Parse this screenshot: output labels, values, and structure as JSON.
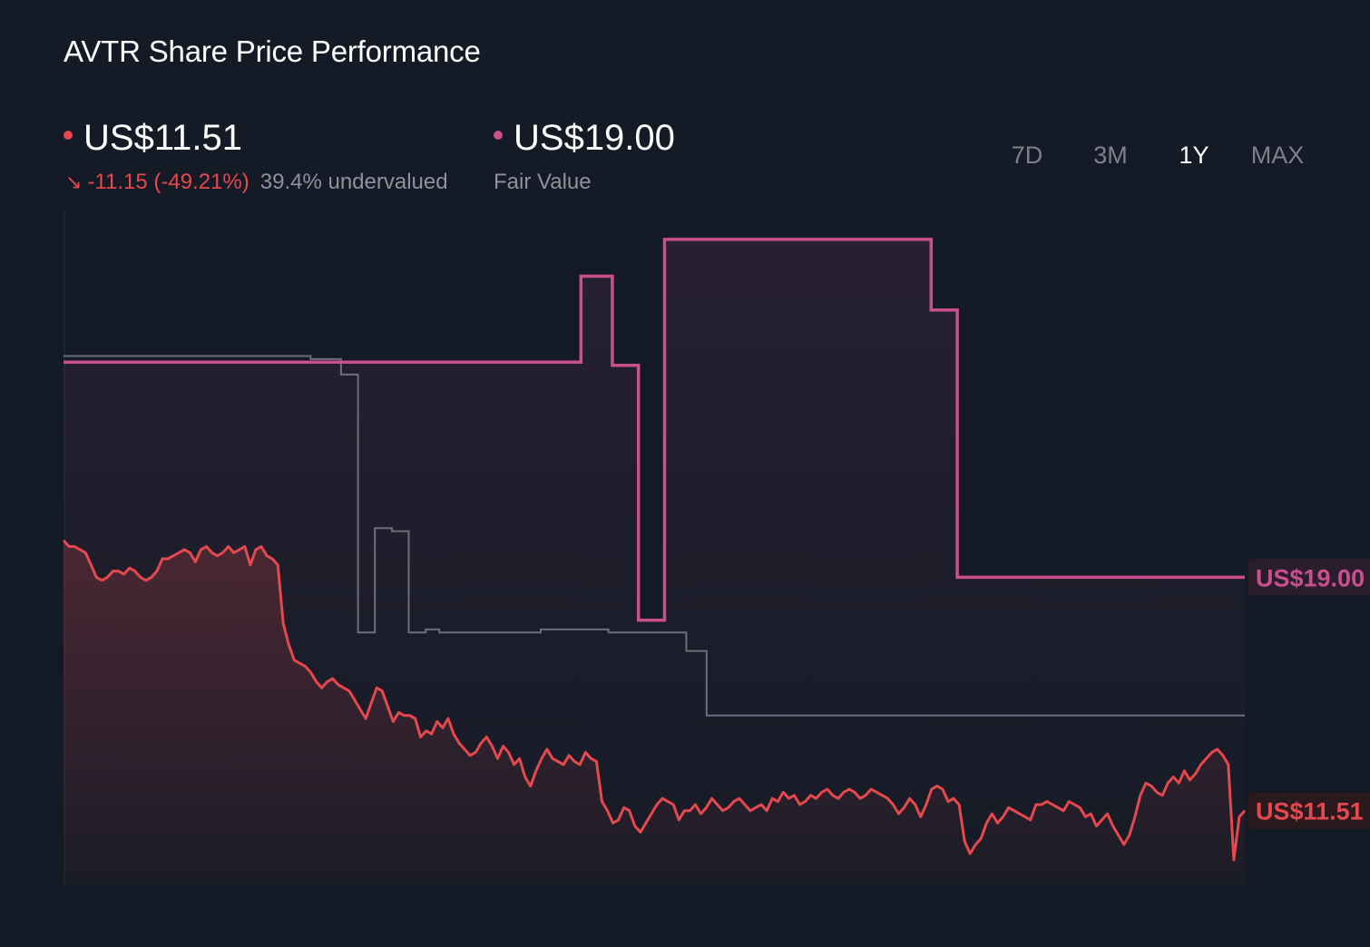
{
  "header": {
    "title": "AVTR Share Price Performance"
  },
  "price": {
    "value": "US$11.51",
    "change": "-11.15 (-49.21%)",
    "change_icon": "arrow-down-right-icon",
    "valuation": "39.4% undervalued",
    "color": "#e5484d"
  },
  "fair_value": {
    "value": "US$19.00",
    "label": "Fair Value",
    "color": "#c94f8f"
  },
  "periods": [
    {
      "label": "7D",
      "active": false
    },
    {
      "label": "3M",
      "active": false
    },
    {
      "label": "1Y",
      "active": true
    },
    {
      "label": "MAX",
      "active": false
    }
  ],
  "chart_data": {
    "type": "line",
    "title": "AVTR Share Price Performance",
    "xlabel": "",
    "ylabel": "",
    "ylim": [
      9,
      31
    ],
    "grid": false,
    "series": [
      {
        "key": "price",
        "color": "#e5484d",
        "end_label": "US$11.51",
        "values": [
          20.2,
          20.0,
          20.0,
          19.9,
          19.8,
          19.4,
          19.0,
          18.9,
          19.0,
          19.2,
          19.2,
          19.1,
          19.3,
          19.2,
          19.0,
          18.9,
          19.0,
          19.2,
          19.6,
          19.6,
          19.7,
          19.8,
          19.9,
          19.8,
          19.5,
          19.9,
          20.0,
          19.8,
          19.7,
          19.8,
          20.0,
          19.8,
          19.9,
          20.0,
          19.4,
          19.9,
          20.0,
          19.7,
          19.6,
          19.4,
          17.5,
          16.8,
          16.3,
          16.2,
          16.1,
          15.9,
          15.6,
          15.4,
          15.6,
          15.7,
          15.5,
          15.4,
          15.3,
          15.0,
          14.7,
          14.4,
          14.9,
          15.4,
          15.3,
          14.8,
          14.3,
          14.6,
          14.5,
          14.5,
          14.4,
          13.8,
          14.0,
          13.9,
          14.3,
          14.1,
          14.4,
          13.9,
          13.6,
          13.4,
          13.2,
          13.3,
          13.6,
          13.8,
          13.5,
          13.1,
          13.5,
          13.3,
          12.9,
          13.1,
          12.5,
          12.2,
          12.7,
          13.1,
          13.4,
          13.1,
          13.0,
          12.9,
          13.2,
          13.0,
          12.9,
          13.3,
          13.1,
          13.0,
          11.7,
          11.4,
          11.0,
          11.1,
          11.5,
          11.4,
          10.9,
          10.7,
          11.0,
          11.3,
          11.6,
          11.8,
          11.7,
          11.6,
          11.1,
          11.4,
          11.4,
          11.6,
          11.3,
          11.5,
          11.8,
          11.6,
          11.4,
          11.5,
          11.7,
          11.8,
          11.6,
          11.4,
          11.5,
          11.6,
          11.4,
          11.8,
          11.7,
          12.0,
          11.8,
          11.9,
          11.6,
          11.7,
          11.9,
          11.8,
          12.0,
          12.1,
          11.9,
          11.8,
          12.0,
          12.1,
          12.0,
          11.8,
          11.9,
          12.1,
          12.0,
          11.9,
          11.8,
          11.6,
          11.3,
          11.5,
          11.8,
          11.6,
          11.2,
          11.6,
          12.1,
          12.2,
          12.1,
          11.7,
          11.8,
          11.6,
          10.4,
          10.0,
          10.3,
          10.5,
          11.0,
          11.3,
          11.0,
          11.2,
          11.5,
          11.4,
          11.3,
          11.2,
          11.1,
          11.6,
          11.6,
          11.7,
          11.6,
          11.5,
          11.4,
          11.7,
          11.6,
          11.5,
          11.2,
          11.3,
          10.9,
          11.1,
          11.3,
          10.9,
          10.6,
          10.3,
          10.6,
          11.2,
          11.9,
          12.3,
          12.2,
          12.0,
          11.9,
          12.3,
          12.5,
          12.3,
          12.7,
          12.4,
          12.6,
          12.9,
          13.1,
          13.3,
          13.4,
          13.2,
          12.9,
          9.8,
          11.2,
          11.4
        ]
      },
      {
        "key": "fair_value",
        "color": "#c94f8f",
        "end_label": "US$19.00",
        "values": [
          26.0,
          26.0,
          26.0,
          26.0,
          26.0,
          26.0,
          26.0,
          26.0,
          26.0,
          26.0,
          26.0,
          26.0,
          26.0,
          26.0,
          26.0,
          26.0,
          26.0,
          26.0,
          26.0,
          26.0,
          26.0,
          26.0,
          26.0,
          26.0,
          26.0,
          26.0,
          26.0,
          26.0,
          26.0,
          26.0,
          26.0,
          26.0,
          26.0,
          26.0,
          26.0,
          26.0,
          26.0,
          26.0,
          26.0,
          26.0,
          26.0,
          26.0,
          26.0,
          26.0,
          26.0,
          26.0,
          26.0,
          26.0,
          26.0,
          26.0,
          26.0,
          26.0,
          26.0,
          26.0,
          26.0,
          26.0,
          26.0,
          26.0,
          26.0,
          26.0,
          26.0,
          26.0,
          26.0,
          26.0,
          26.0,
          26.0,
          26.0,
          26.0,
          26.0,
          26.0,
          26.0,
          26.0,
          26.0,
          26.0,
          26.0,
          26.0,
          26.0,
          26.0,
          26.0,
          26.0,
          26.0,
          26.0,
          26.0,
          26.0,
          26.0,
          26.0,
          26.0,
          26.0,
          26.0,
          26.0,
          26.0,
          26.0,
          26.0,
          26.0,
          26.0,
          26.0,
          26.0,
          26.0,
          26.0,
          28.8,
          28.8,
          28.8,
          28.8,
          28.8,
          28.8,
          25.9,
          25.9,
          25.9,
          25.9,
          25.9,
          17.6,
          17.6,
          17.6,
          17.6,
          17.6,
          30.0,
          30.0,
          30.0,
          30.0,
          30.0,
          30.0,
          30.0,
          30.0,
          30.0,
          30.0,
          30.0,
          30.0,
          30.0,
          30.0,
          30.0,
          30.0,
          30.0,
          30.0,
          30.0,
          30.0,
          30.0,
          30.0,
          30.0,
          30.0,
          30.0,
          30.0,
          30.0,
          30.0,
          30.0,
          30.0,
          30.0,
          30.0,
          30.0,
          30.0,
          30.0,
          30.0,
          30.0,
          30.0,
          30.0,
          30.0,
          30.0,
          30.0,
          30.0,
          30.0,
          30.0,
          30.0,
          30.0,
          30.0,
          30.0,
          30.0,
          30.0,
          27.7,
          27.7,
          27.7,
          27.7,
          27.7,
          19.0,
          19.0,
          19.0,
          19.0,
          19.0,
          19.0,
          19.0,
          19.0,
          19.0,
          19.0,
          19.0,
          19.0,
          19.0,
          19.0,
          19.0,
          19.0,
          19.0,
          19.0,
          19.0,
          19.0,
          19.0,
          19.0,
          19.0,
          19.0,
          19.0,
          19.0,
          19.0,
          19.0,
          19.0,
          19.0,
          19.0,
          19.0,
          19.0,
          19.0,
          19.0,
          19.0,
          19.0,
          19.0,
          19.0,
          19.0,
          19.0,
          19.0,
          19.0,
          19.0,
          19.0,
          19.0,
          19.0,
          19.0,
          19.0,
          19.0,
          19.0,
          19.0,
          19.0,
          19.0,
          19.0,
          19.0
        ]
      },
      {
        "key": "analyst_high",
        "color": "#6b6f78",
        "values": [
          26.2,
          26.2,
          26.2,
          26.2,
          26.2,
          26.2,
          26.2,
          26.2,
          26.2,
          26.2,
          26.2,
          26.2,
          26.2,
          26.2,
          26.2,
          26.2,
          26.2,
          26.2,
          26.2,
          26.2,
          26.2,
          26.2,
          26.2,
          26.2,
          26.2,
          26.2,
          26.2,
          26.2,
          26.2,
          26.2,
          26.2,
          26.2,
          26.2,
          26.2,
          26.2,
          26.2,
          26.2,
          26.2,
          26.2,
          26.2,
          26.2,
          26.2,
          26.2,
          26.2,
          26.2,
          26.2,
          26.2,
          26.2,
          26.2,
          26.2,
          26.2,
          26.2,
          26.2,
          26.2,
          26.2,
          26.2,
          26.2,
          26.2,
          26.2,
          26.2,
          26.2,
          26.2,
          26.2,
          26.2,
          26.2,
          26.2,
          26.2,
          26.2,
          26.2,
          26.2,
          26.2,
          26.2,
          26.2,
          26.1,
          26.1,
          26.1,
          26.1,
          26.1,
          26.1,
          26.1,
          26.1,
          26.1,
          25.6,
          25.6,
          25.6,
          25.6,
          25.6,
          17.2,
          17.2,
          17.2,
          17.2,
          17.2,
          20.6,
          20.6,
          20.6,
          20.6,
          20.6,
          20.5,
          20.5,
          20.5,
          20.5,
          20.5,
          17.2,
          17.2,
          17.2,
          17.2,
          17.2,
          17.3,
          17.3,
          17.3,
          17.3,
          17.2,
          17.2,
          17.2,
          17.2,
          17.2,
          17.2,
          17.2,
          17.2,
          17.2,
          17.2,
          17.2,
          17.2,
          17.2,
          17.2,
          17.2,
          17.2,
          17.2,
          17.2,
          17.2,
          17.2,
          17.2,
          17.2,
          17.2,
          17.2,
          17.2,
          17.2,
          17.2,
          17.2,
          17.2,
          17.2,
          17.3,
          17.3,
          17.3,
          17.3,
          17.3,
          17.3,
          17.3,
          17.3,
          17.3,
          17.3,
          17.3,
          17.3,
          17.3,
          17.3,
          17.3,
          17.3,
          17.3,
          17.3,
          17.3,
          17.3,
          17.2,
          17.2,
          17.2,
          17.2,
          17.2,
          17.2,
          17.2,
          17.2,
          17.2,
          17.2,
          17.2,
          17.2,
          17.2,
          17.2,
          17.2,
          17.2,
          17.2,
          17.2,
          17.2,
          17.2,
          17.2,
          17.2,
          17.2,
          16.6,
          16.6,
          16.6,
          16.6,
          16.6,
          16.6,
          14.5,
          14.5,
          14.5,
          14.5,
          14.5,
          14.5,
          14.5,
          14.5,
          14.5,
          14.5,
          14.5,
          14.5,
          14.5,
          14.5,
          14.5,
          14.5,
          14.5,
          14.5,
          14.5,
          14.5,
          14.5,
          14.5,
          14.5,
          14.5,
          14.5,
          14.5,
          14.5,
          14.5,
          14.5,
          14.5,
          14.5,
          14.5,
          14.5,
          14.5,
          14.5,
          14.5,
          14.5,
          14.5,
          14.5,
          14.5,
          14.5,
          14.5,
          14.5,
          14.5,
          14.5,
          14.5,
          14.5,
          14.5,
          14.5,
          14.5,
          14.5,
          14.5,
          14.5,
          14.5,
          14.5,
          14.5,
          14.5,
          14.5,
          14.5,
          14.5,
          14.5,
          14.5,
          14.5,
          14.5,
          14.5,
          14.5,
          14.5,
          14.5,
          14.5,
          14.5,
          14.5,
          14.5,
          14.5,
          14.5,
          14.5,
          14.5,
          14.5,
          14.5,
          14.5,
          14.5,
          14.5,
          14.5,
          14.5,
          14.5,
          14.5,
          14.5,
          14.5,
          14.5,
          14.5,
          14.5,
          14.5,
          14.5,
          14.5,
          14.5,
          14.5,
          14.5,
          14.5,
          14.5,
          14.5,
          14.5,
          14.5,
          14.5,
          14.5,
          14.5,
          14.5,
          14.5,
          14.5,
          14.5,
          14.5,
          14.5,
          14.5,
          14.5,
          14.5,
          14.5,
          14.5,
          14.5,
          14.5,
          14.5,
          14.5,
          14.5,
          14.5,
          14.5,
          14.5,
          14.5,
          14.5,
          14.5,
          14.5,
          14.5,
          14.5,
          14.5,
          14.5,
          14.5,
          14.5,
          14.5,
          14.5,
          14.5,
          14.5,
          14.5,
          14.5,
          14.5,
          14.5,
          14.5,
          14.5,
          14.5,
          14.5,
          14.5,
          14.5,
          14.5,
          14.5,
          14.5,
          14.5,
          14.5,
          14.5,
          14.5,
          14.5,
          14.5,
          14.5,
          14.5,
          14.5,
          14.5
        ]
      }
    ]
  }
}
